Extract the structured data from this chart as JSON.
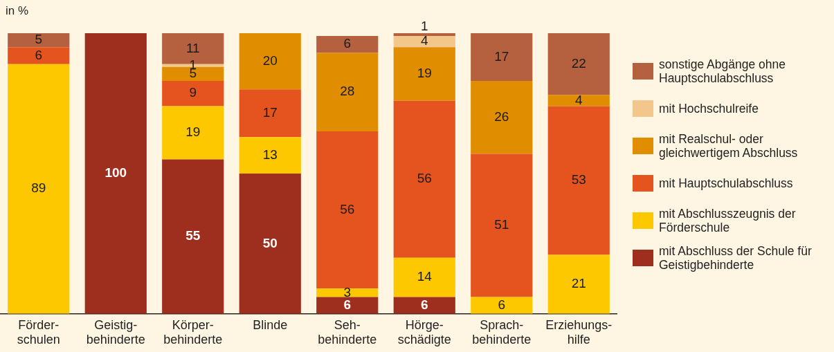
{
  "chart_data": {
    "type": "bar",
    "stacked": true,
    "ylabel": "in %",
    "legend": "right",
    "grid": false,
    "categories": [
      "Förder-\nschulen",
      "Geistig-\nbehinderte",
      "Körper-\nbehinderte",
      "Blinde",
      "Seh-\nbehinderte",
      "Hörge-\nschädigte",
      "Sprach-\nbehinderte",
      "Erziehungs-\nhilfe"
    ],
    "series": [
      {
        "name": "mit Abschluss der Schule für Geistigbehinderte",
        "color": "#9e2f1e",
        "values": [
          0,
          100,
          55,
          50,
          6,
          6,
          0,
          0
        ],
        "value_labels": [
          null,
          "100",
          "55",
          "50",
          "6",
          "6",
          null,
          null
        ]
      },
      {
        "name": "mit Abschlusszeugnis der Förderschule",
        "color": "#fdc800",
        "values": [
          89,
          0,
          19,
          13,
          3,
          14,
          6,
          21
        ],
        "value_labels": [
          "89",
          null,
          "19",
          "13",
          "3",
          "14",
          "6",
          "21"
        ]
      },
      {
        "name": "mit Hauptschulabschluss",
        "color": "#e5541f",
        "values": [
          6,
          0,
          9,
          17,
          56,
          56,
          51,
          53
        ],
        "value_labels": [
          "6",
          null,
          "9",
          "17",
          "56",
          "56",
          "51",
          "53"
        ]
      },
      {
        "name": "mit Realschul- oder gleichwertigem Abschluss",
        "color": "#e08e00",
        "values": [
          0,
          0,
          5,
          20,
          28,
          19,
          26,
          4
        ],
        "value_labels": [
          null,
          null,
          "5",
          "20",
          "28",
          "19",
          "26",
          "4"
        ]
      },
      {
        "name": "mit Hochschulreife",
        "color": "#f3c68b",
        "values": [
          0,
          0,
          1,
          0,
          0,
          4,
          0,
          0
        ],
        "value_labels": [
          null,
          null,
          "1",
          null,
          null,
          "4",
          null,
          null
        ]
      },
      {
        "name": "sonstige Abgänge ohne Hauptschulabschluss",
        "color": "#b5603e",
        "values": [
          5,
          0,
          11,
          0,
          6,
          1,
          17,
          22
        ],
        "value_labels": [
          "5",
          null,
          "11",
          null,
          "6",
          "1",
          "17",
          "22"
        ]
      }
    ]
  }
}
